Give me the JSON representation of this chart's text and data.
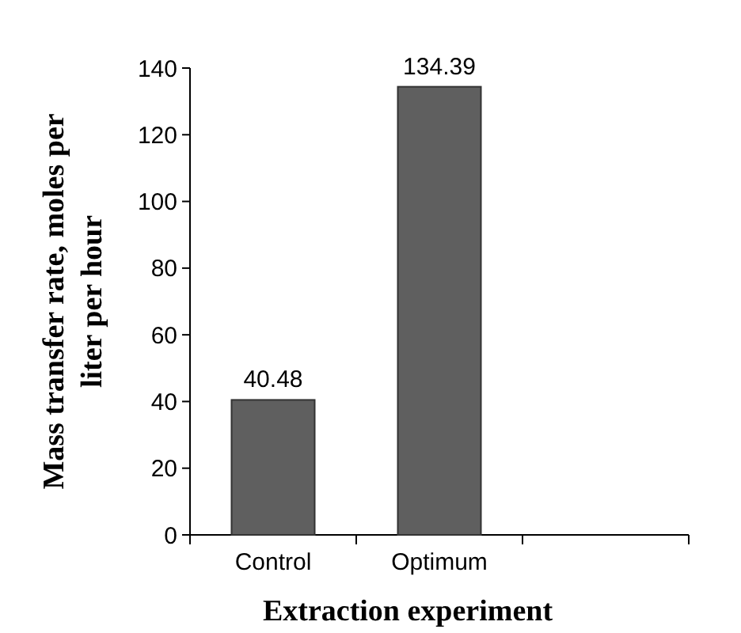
{
  "chart_data": {
    "type": "bar",
    "xlabel": "Extraction experiment",
    "ylabel": "Mass transfer rate, moles per liter per hour",
    "categories": [
      "Control",
      "Optimum",
      null
    ],
    "values": [
      40.48,
      134.39,
      null
    ],
    "color": "#5f5f5f",
    "ylim": [
      0,
      140
    ],
    "yticks": [
      0,
      20,
      40,
      60,
      80,
      100,
      120,
      140
    ],
    "data_labels": true,
    "grid": false
  }
}
